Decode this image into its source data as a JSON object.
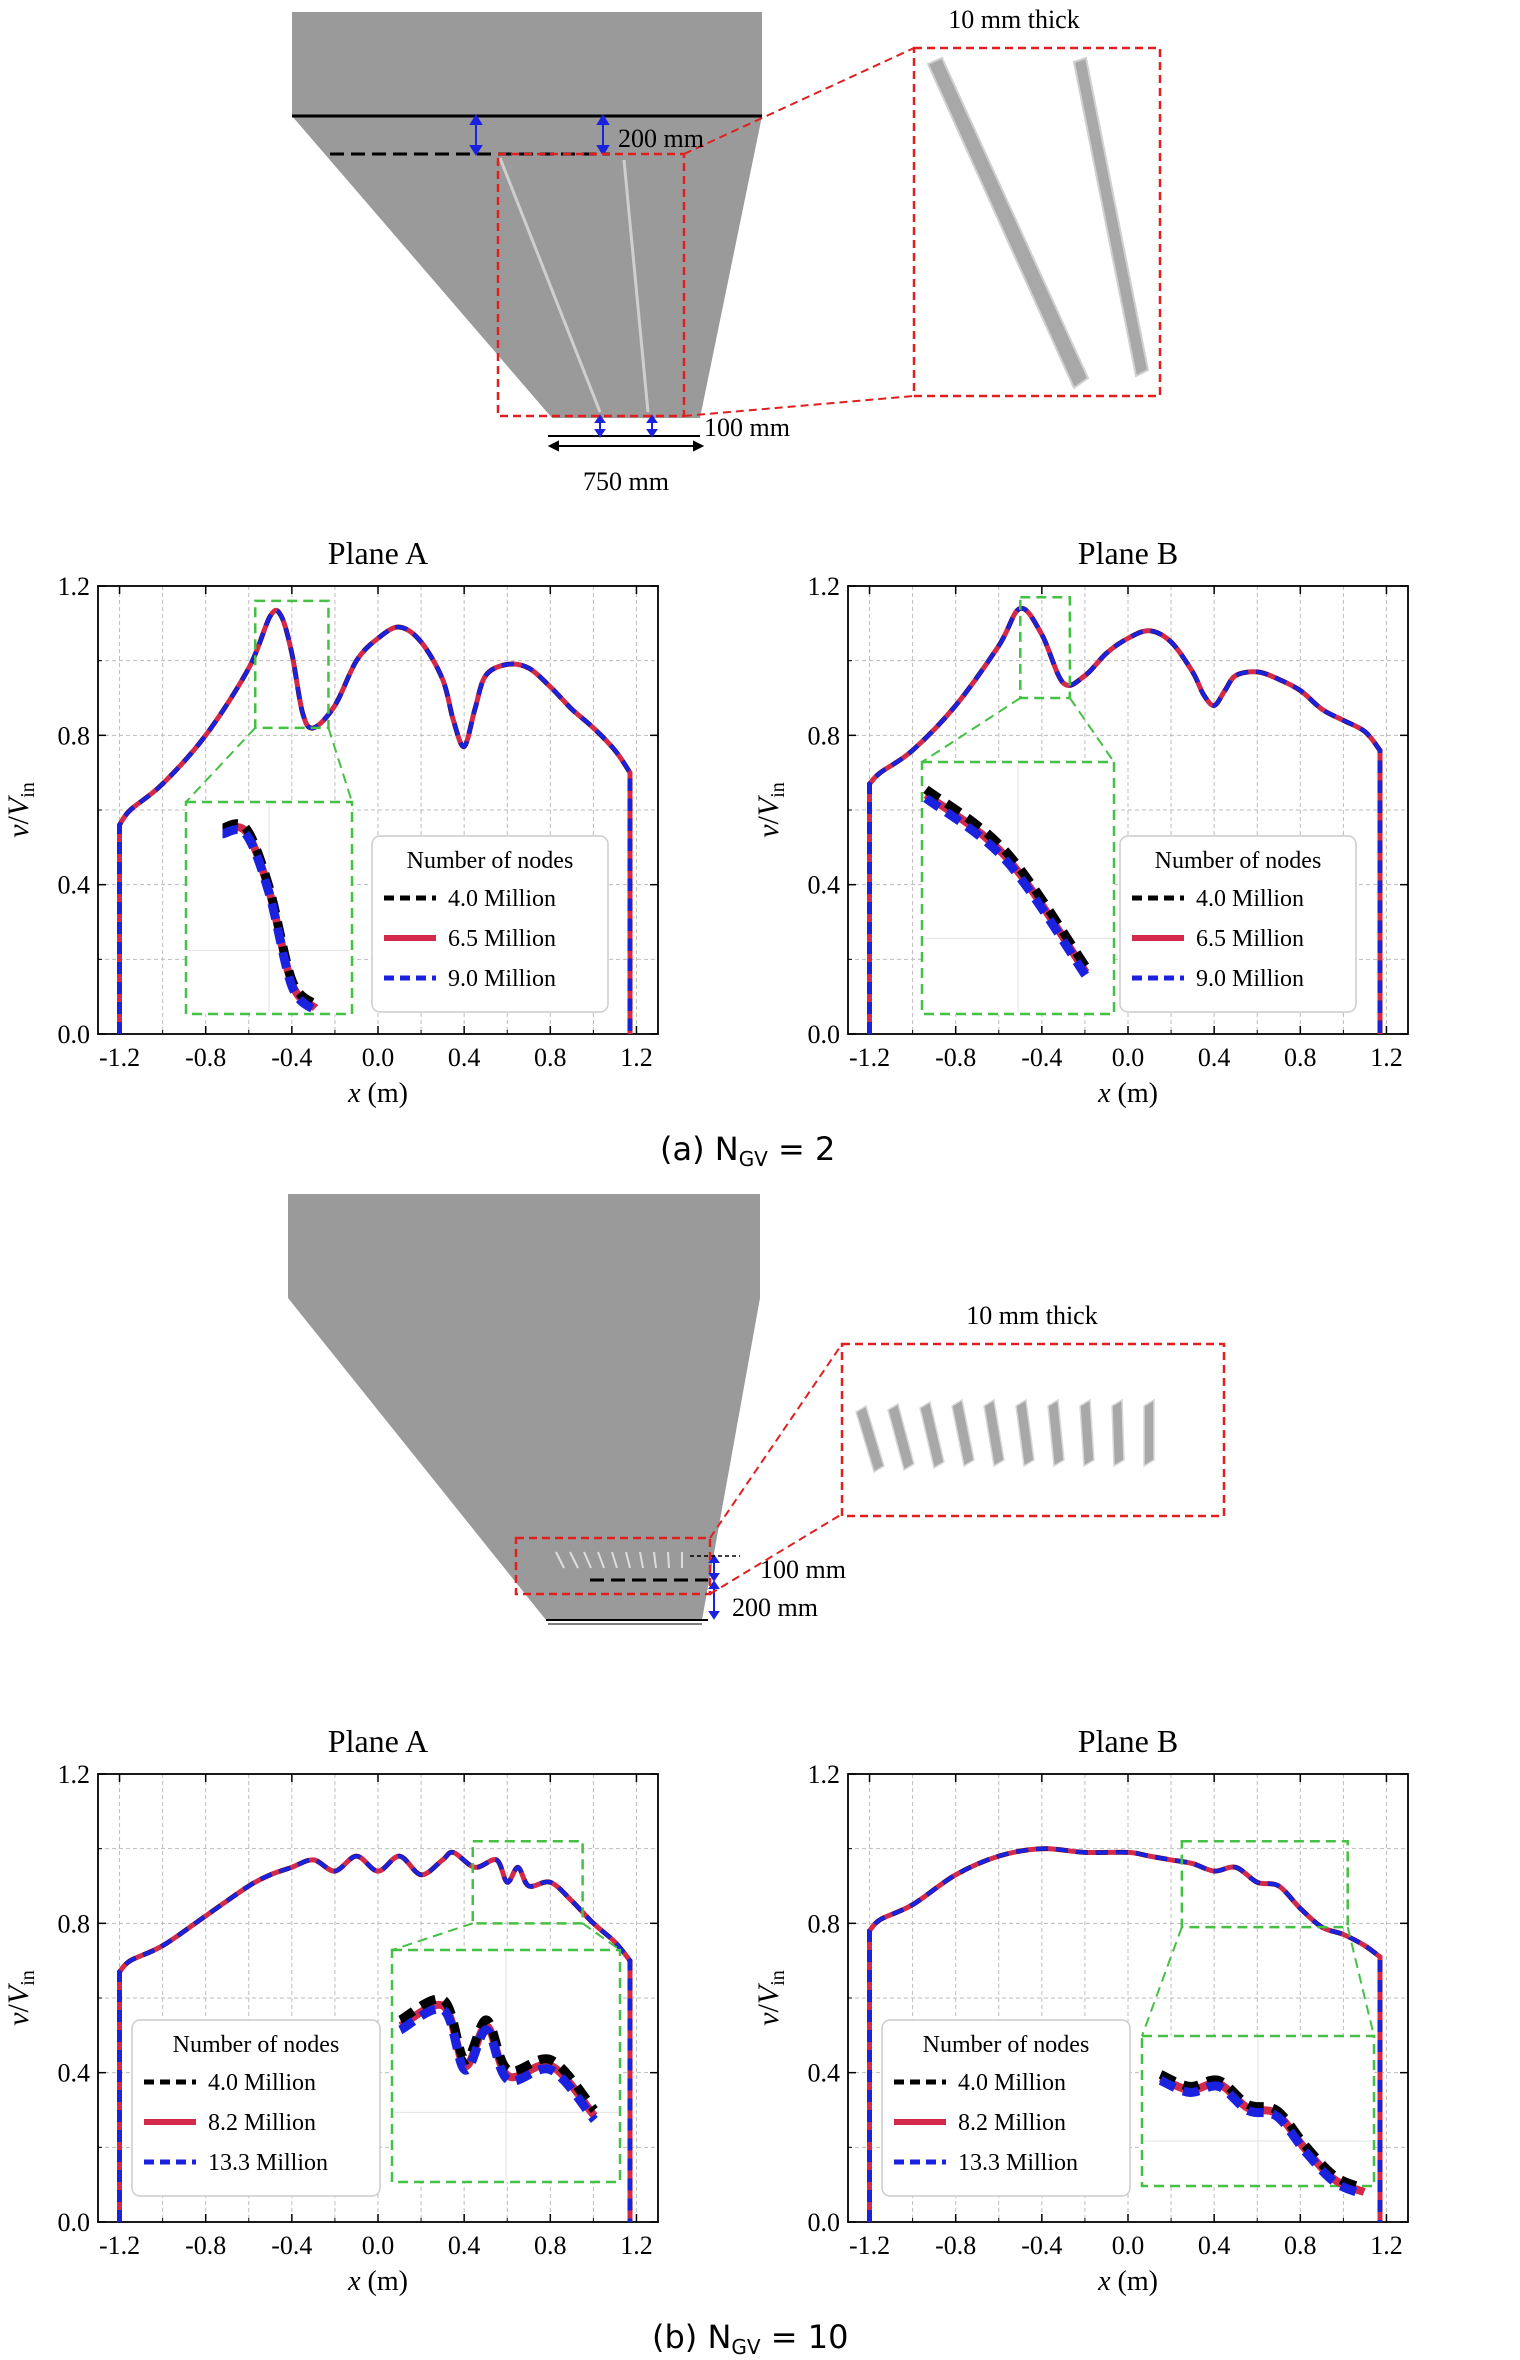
{
  "colors": {
    "hopper_fill": "#9a9a9a",
    "vane_fill": "#b8b8b8",
    "red_box": "#e02020",
    "green_box": "#44c044",
    "series_black": "#000000",
    "series_red": "#d42a4a",
    "series_blue": "#1a22e0",
    "dimension_blue": "#1a22e0",
    "grid": "#bdbdbd"
  },
  "panel_a": {
    "caption": "(a) N",
    "caption_sub": "GV",
    "caption_tail": " = 2",
    "schematic": {
      "label_thick": "10 mm thick",
      "label_dim_200": "200 mm",
      "label_dim_100": "100 mm",
      "label_dim_750": "750 mm"
    }
  },
  "panel_b": {
    "caption": "(b) N",
    "caption_sub": "GV",
    "caption_tail": " = 10",
    "schematic": {
      "label_thick": "10 mm thick",
      "label_dim_100": "100 mm",
      "label_dim_200": "200 mm"
    }
  },
  "chart_data": [
    {
      "id": "a_planeA",
      "type": "line",
      "title": "Plane A",
      "xlabel": "x (m)",
      "ylabel": "v/V_in",
      "xlim": [
        -1.3,
        1.3
      ],
      "ylim": [
        0.0,
        1.2
      ],
      "xticks": [
        "-1.2",
        "-0.8",
        "-0.4",
        "0.0",
        "0.4",
        "0.8",
        "1.2"
      ],
      "yticks": [
        "0.0",
        "0.4",
        "0.8",
        "1.2"
      ],
      "grid": true,
      "legend_title": "Number of nodes",
      "legend_position": "lower-right",
      "x": [
        -1.2,
        -1.15,
        -1.0,
        -0.8,
        -0.6,
        -0.5,
        -0.45,
        -0.4,
        -0.35,
        -0.3,
        -0.2,
        -0.1,
        0.0,
        0.1,
        0.2,
        0.3,
        0.35,
        0.4,
        0.45,
        0.5,
        0.6,
        0.7,
        0.8,
        0.9,
        1.0,
        1.1,
        1.17
      ],
      "series": [
        {
          "name": "4.0 Million",
          "style": "dashed",
          "color": "#000000",
          "values": [
            0.56,
            0.6,
            0.67,
            0.8,
            0.98,
            1.12,
            1.12,
            1.02,
            0.86,
            0.82,
            0.88,
            1.0,
            1.06,
            1.09,
            1.05,
            0.95,
            0.84,
            0.77,
            0.87,
            0.96,
            0.99,
            0.98,
            0.93,
            0.87,
            0.82,
            0.76,
            0.7
          ]
        },
        {
          "name": "6.5 Million",
          "style": "solid",
          "color": "#d42a4a",
          "values": [
            0.56,
            0.6,
            0.67,
            0.8,
            0.98,
            1.12,
            1.12,
            1.02,
            0.86,
            0.82,
            0.88,
            1.0,
            1.06,
            1.09,
            1.05,
            0.95,
            0.84,
            0.77,
            0.87,
            0.96,
            0.99,
            0.98,
            0.93,
            0.87,
            0.82,
            0.76,
            0.7
          ]
        },
        {
          "name": "9.0 Million",
          "style": "dashed",
          "color": "#1a22e0",
          "values": [
            0.56,
            0.6,
            0.67,
            0.8,
            0.98,
            1.12,
            1.12,
            1.02,
            0.86,
            0.82,
            0.88,
            1.0,
            1.06,
            1.09,
            1.05,
            0.95,
            0.84,
            0.77,
            0.87,
            0.96,
            0.99,
            0.98,
            0.93,
            0.87,
            0.82,
            0.76,
            0.7
          ]
        }
      ],
      "zoom_box_data": {
        "x": [
          -0.57,
          -0.23
        ],
        "y": [
          0.82,
          1.16
        ]
      }
    },
    {
      "id": "a_planeB",
      "type": "line",
      "title": "Plane B",
      "xlabel": "x (m)",
      "ylabel": "v/V_in",
      "xlim": [
        -1.3,
        1.3
      ],
      "ylim": [
        0.0,
        1.2
      ],
      "xticks": [
        "-1.2",
        "-0.8",
        "-0.4",
        "0.0",
        "0.4",
        "0.8",
        "1.2"
      ],
      "yticks": [
        "0.0",
        "0.4",
        "0.8",
        "1.2"
      ],
      "grid": true,
      "legend_title": "Number of nodes",
      "legend_position": "lower-right",
      "x": [
        -1.2,
        -1.15,
        -1.0,
        -0.8,
        -0.6,
        -0.5,
        -0.4,
        -0.3,
        -0.2,
        -0.1,
        0.0,
        0.1,
        0.2,
        0.3,
        0.35,
        0.4,
        0.45,
        0.5,
        0.6,
        0.7,
        0.8,
        0.9,
        1.0,
        1.1,
        1.17
      ],
      "series": [
        {
          "name": "4.0 Million",
          "style": "dashed",
          "color": "#000000",
          "values": [
            0.67,
            0.7,
            0.76,
            0.88,
            1.04,
            1.14,
            1.07,
            0.94,
            0.96,
            1.02,
            1.06,
            1.08,
            1.05,
            0.97,
            0.91,
            0.88,
            0.92,
            0.96,
            0.97,
            0.95,
            0.92,
            0.87,
            0.84,
            0.81,
            0.76
          ]
        },
        {
          "name": "6.5 Million",
          "style": "solid",
          "color": "#d42a4a",
          "values": [
            0.67,
            0.7,
            0.76,
            0.88,
            1.04,
            1.14,
            1.07,
            0.94,
            0.96,
            1.02,
            1.06,
            1.08,
            1.05,
            0.97,
            0.91,
            0.88,
            0.92,
            0.96,
            0.97,
            0.95,
            0.92,
            0.87,
            0.84,
            0.81,
            0.76
          ]
        },
        {
          "name": "9.0 Million",
          "style": "dashed",
          "color": "#1a22e0",
          "values": [
            0.67,
            0.7,
            0.76,
            0.88,
            1.04,
            1.14,
            1.07,
            0.94,
            0.96,
            1.02,
            1.06,
            1.08,
            1.05,
            0.97,
            0.91,
            0.88,
            0.92,
            0.96,
            0.97,
            0.95,
            0.92,
            0.87,
            0.84,
            0.81,
            0.76
          ]
        }
      ],
      "zoom_box_data": {
        "x": [
          -0.5,
          -0.27
        ],
        "y": [
          0.9,
          1.17
        ]
      }
    },
    {
      "id": "b_planeA",
      "type": "line",
      "title": "Plane A",
      "xlabel": "x (m)",
      "ylabel": "v/V_in",
      "xlim": [
        -1.3,
        1.3
      ],
      "ylim": [
        0.0,
        1.2
      ],
      "xticks": [
        "-1.2",
        "-0.8",
        "-0.4",
        "0.0",
        "0.4",
        "0.8",
        "1.2"
      ],
      "yticks": [
        "0.0",
        "0.4",
        "0.8",
        "1.2"
      ],
      "grid": true,
      "legend_title": "Number of nodes",
      "legend_position": "lower-left",
      "x": [
        -1.2,
        -1.15,
        -1.0,
        -0.8,
        -0.6,
        -0.5,
        -0.4,
        -0.3,
        -0.2,
        -0.1,
        0.0,
        0.1,
        0.2,
        0.3,
        0.35,
        0.45,
        0.55,
        0.6,
        0.65,
        0.7,
        0.8,
        0.9,
        1.0,
        1.1,
        1.17
      ],
      "series": [
        {
          "name": "4.0 Million",
          "style": "dashed",
          "color": "#000000",
          "values": [
            0.67,
            0.7,
            0.74,
            0.82,
            0.9,
            0.93,
            0.95,
            0.97,
            0.94,
            0.98,
            0.94,
            0.98,
            0.93,
            0.97,
            0.99,
            0.95,
            0.97,
            0.91,
            0.95,
            0.9,
            0.91,
            0.86,
            0.8,
            0.75,
            0.7
          ]
        },
        {
          "name": "8.2 Million",
          "style": "solid",
          "color": "#d42a4a",
          "values": [
            0.67,
            0.7,
            0.74,
            0.82,
            0.9,
            0.93,
            0.95,
            0.97,
            0.94,
            0.98,
            0.94,
            0.98,
            0.93,
            0.97,
            0.99,
            0.95,
            0.97,
            0.91,
            0.95,
            0.9,
            0.91,
            0.86,
            0.8,
            0.75,
            0.7
          ]
        },
        {
          "name": "13.3 Million",
          "style": "dashed",
          "color": "#1a22e0",
          "values": [
            0.67,
            0.7,
            0.74,
            0.82,
            0.9,
            0.93,
            0.95,
            0.97,
            0.94,
            0.98,
            0.94,
            0.98,
            0.93,
            0.97,
            0.99,
            0.95,
            0.97,
            0.91,
            0.95,
            0.9,
            0.91,
            0.86,
            0.8,
            0.75,
            0.7
          ]
        }
      ],
      "zoom_box_data": {
        "x": [
          0.44,
          0.95
        ],
        "y": [
          0.8,
          1.02
        ]
      }
    },
    {
      "id": "b_planeB",
      "type": "line",
      "title": "Plane B",
      "xlabel": "x (m)",
      "ylabel": "v/V_in",
      "xlim": [
        -1.3,
        1.3
      ],
      "ylim": [
        0.0,
        1.2
      ],
      "xticks": [
        "-1.2",
        "-0.8",
        "-0.4",
        "0.0",
        "0.4",
        "0.8",
        "1.2"
      ],
      "yticks": [
        "0.0",
        "0.4",
        "0.8",
        "1.2"
      ],
      "grid": true,
      "legend_title": "Number of nodes",
      "legend_position": "lower-left",
      "x": [
        -1.2,
        -1.15,
        -1.0,
        -0.8,
        -0.6,
        -0.4,
        -0.2,
        0.0,
        0.1,
        0.2,
        0.3,
        0.4,
        0.5,
        0.6,
        0.7,
        0.8,
        0.9,
        1.0,
        1.1,
        1.17
      ],
      "series": [
        {
          "name": "4.0 Million",
          "style": "dashed",
          "color": "#000000",
          "values": [
            0.78,
            0.81,
            0.85,
            0.93,
            0.98,
            1.0,
            0.99,
            0.99,
            0.98,
            0.97,
            0.96,
            0.94,
            0.95,
            0.91,
            0.9,
            0.84,
            0.79,
            0.77,
            0.74,
            0.71
          ]
        },
        {
          "name": "8.2 Million",
          "style": "solid",
          "color": "#d42a4a",
          "values": [
            0.78,
            0.81,
            0.85,
            0.93,
            0.98,
            1.0,
            0.99,
            0.99,
            0.98,
            0.97,
            0.96,
            0.94,
            0.95,
            0.91,
            0.9,
            0.84,
            0.79,
            0.77,
            0.74,
            0.71
          ]
        },
        {
          "name": "13.3 Million",
          "style": "dashed",
          "color": "#1a22e0",
          "values": [
            0.78,
            0.81,
            0.85,
            0.93,
            0.98,
            1.0,
            0.99,
            0.99,
            0.98,
            0.97,
            0.96,
            0.94,
            0.95,
            0.91,
            0.9,
            0.84,
            0.79,
            0.77,
            0.74,
            0.71
          ]
        }
      ],
      "zoom_box_data": {
        "x": [
          0.25,
          1.02
        ],
        "y": [
          0.79,
          1.02
        ]
      }
    }
  ]
}
